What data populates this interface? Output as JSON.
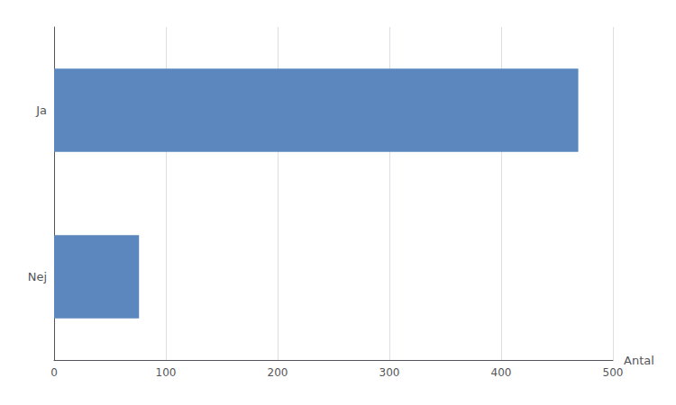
{
  "chart_data": {
    "type": "bar",
    "orientation": "horizontal",
    "categories": [
      "Nej",
      "Ja"
    ],
    "values": [
      76,
      469
    ],
    "color": "#5B87BE",
    "xlabel": "Antal",
    "xlim": [
      0,
      500
    ],
    "xticks": [
      0,
      100,
      200,
      300,
      400,
      500
    ],
    "grid": true
  }
}
